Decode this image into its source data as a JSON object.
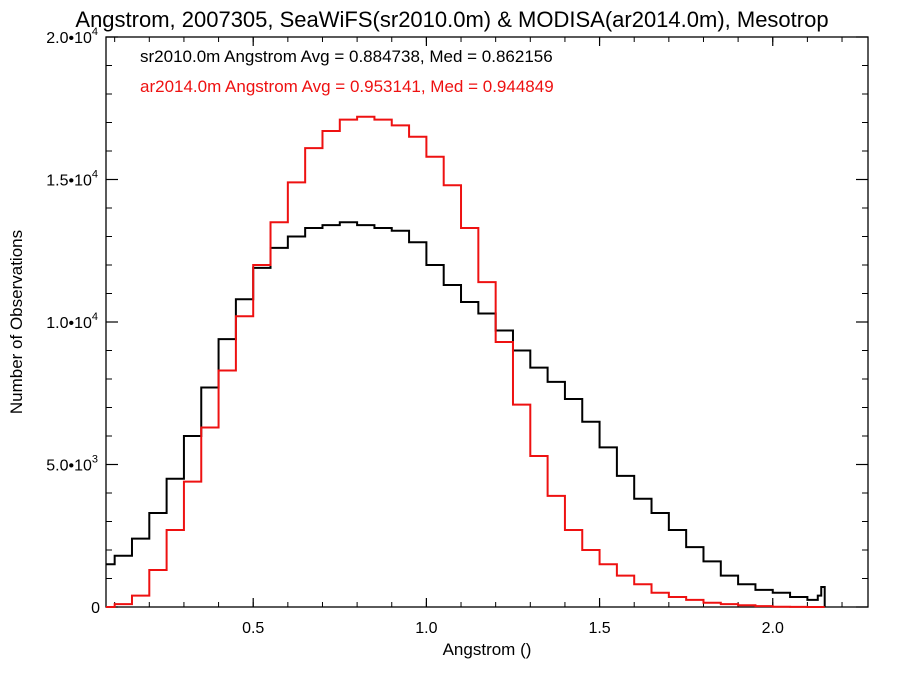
{
  "chart_data": {
    "type": "line",
    "title": "Angstrom, 2007305, SeaWiFS(sr2010.0m) & MODISA(ar2014.0m), Mesotrop",
    "xlabel": "Angstrom ()",
    "ylabel": "Number of Observations",
    "xlim": [
      0.075,
      2.275
    ],
    "ylim": [
      0,
      20000
    ],
    "x_ticks": [
      0.5,
      1.0,
      1.5,
      2.0
    ],
    "x_tick_labels": [
      "0.5",
      "1.0",
      "1.5",
      "2.0"
    ],
    "y_ticks": [
      0,
      5000,
      10000,
      15000,
      20000
    ],
    "y_tick_labels": [
      {
        "mant": "0",
        "exp": ""
      },
      {
        "mant": "5.0•10",
        "exp": "3"
      },
      {
        "mant": "1.0•10",
        "exp": "4"
      },
      {
        "mant": "1.5•10",
        "exp": "4"
      },
      {
        "mant": "2.0•10",
        "exp": "4"
      }
    ],
    "grid": false,
    "annotations": [
      {
        "text": "sr2010.0m Angstrom Avg = 0.884738, Med = 0.862156",
        "color": "#000000"
      },
      {
        "text": "ar2014.0m Angstrom Avg = 0.953141, Med = 0.944849",
        "color": "#ee1111"
      }
    ],
    "series": [
      {
        "color": "#000000",
        "step": true,
        "x": [
          0.075,
          0.1,
          0.15,
          0.2,
          0.25,
          0.3,
          0.35,
          0.4,
          0.45,
          0.5,
          0.55,
          0.6,
          0.65,
          0.7,
          0.75,
          0.8,
          0.85,
          0.9,
          0.95,
          1.0,
          1.05,
          1.1,
          1.15,
          1.2,
          1.25,
          1.3,
          1.35,
          1.4,
          1.45,
          1.5,
          1.55,
          1.6,
          1.65,
          1.7,
          1.75,
          1.8,
          1.85,
          1.9,
          1.95,
          2.0,
          2.05,
          2.1,
          2.13,
          2.14,
          2.15
        ],
        "values": [
          1500,
          1800,
          2400,
          3300,
          4500,
          6000,
          7700,
          9400,
          10800,
          11900,
          12600,
          13000,
          13300,
          13400,
          13500,
          13400,
          13300,
          13200,
          12800,
          12000,
          11300,
          10700,
          10300,
          9700,
          9000,
          8400,
          7900,
          7300,
          6500,
          5600,
          4600,
          3800,
          3300,
          2700,
          2100,
          1600,
          1100,
          800,
          600,
          500,
          350,
          250,
          400,
          700,
          0
        ]
      },
      {
        "color": "#ee1111",
        "step": true,
        "x": [
          0.075,
          0.1,
          0.15,
          0.2,
          0.25,
          0.3,
          0.35,
          0.4,
          0.45,
          0.5,
          0.55,
          0.6,
          0.65,
          0.7,
          0.75,
          0.8,
          0.85,
          0.9,
          0.95,
          1.0,
          1.05,
          1.1,
          1.15,
          1.2,
          1.25,
          1.3,
          1.35,
          1.4,
          1.45,
          1.5,
          1.55,
          1.6,
          1.65,
          1.7,
          1.75,
          1.8,
          1.85,
          1.9,
          1.95,
          2.0,
          2.05,
          2.1,
          2.15
        ],
        "values": [
          0,
          100,
          400,
          1300,
          2700,
          4400,
          6300,
          8300,
          10200,
          12000,
          13500,
          14900,
          16100,
          16700,
          17100,
          17200,
          17100,
          16900,
          16500,
          15800,
          14800,
          13300,
          11400,
          9300,
          7100,
          5300,
          3900,
          2700,
          2000,
          1500,
          1100,
          800,
          500,
          350,
          250,
          150,
          100,
          60,
          30,
          10,
          5,
          0,
          0
        ]
      }
    ]
  }
}
